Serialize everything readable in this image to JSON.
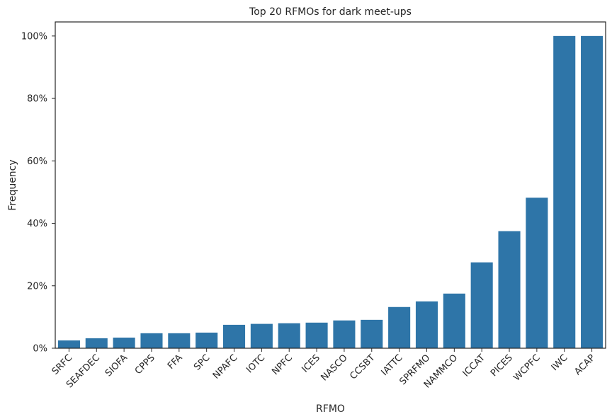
{
  "chart_data": {
    "type": "bar",
    "title": "Top 20 RFMOs for dark meet-ups",
    "xlabel": "RFMO",
    "ylabel": "Frequency",
    "categories": [
      "SRFC",
      "SEAFDEC",
      "SIOFA",
      "CPPS",
      "FFA",
      "SPC",
      "NPAFC",
      "IOTC",
      "NPFC",
      "ICES",
      "NASCO",
      "CCSBT",
      "IATTC",
      "SPRFMO",
      "NAMMCO",
      "ICCAT",
      "PICES",
      "WCPFC",
      "IWC",
      "ACAP"
    ],
    "values": [
      2.5,
      3.2,
      3.4,
      4.8,
      4.8,
      5.0,
      7.5,
      7.8,
      8.0,
      8.2,
      8.9,
      9.1,
      13.2,
      15.0,
      17.5,
      27.5,
      37.5,
      48.2,
      100,
      100
    ],
    "ylim": [
      0,
      104.5
    ],
    "yticks": [
      0,
      20,
      40,
      60,
      80,
      100
    ],
    "ytick_labels": [
      "0%",
      "20%",
      "40%",
      "60%",
      "80%",
      "100%"
    ],
    "grid": false,
    "bar_color": "#2e75a8",
    "text_color": "#262626",
    "axis_color": "#262626"
  }
}
